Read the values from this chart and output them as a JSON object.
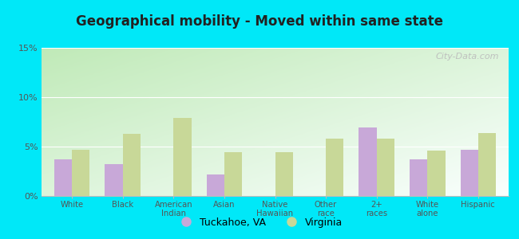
{
  "title": "Geographical mobility - Moved within same state",
  "categories": [
    "White",
    "Black",
    "American\nIndian",
    "Asian",
    "Native\nHawaiian",
    "Other\nrace",
    "2+\nraces",
    "White\nalone",
    "Hispanic"
  ],
  "tuckahoe_values": [
    3.7,
    3.2,
    0.0,
    2.2,
    0.0,
    0.0,
    6.9,
    3.7,
    4.7
  ],
  "virginia_values": [
    4.7,
    6.3,
    7.9,
    4.4,
    4.4,
    5.8,
    5.8,
    4.6,
    6.4
  ],
  "tuckahoe_color": "#c8a8d8",
  "virginia_color": "#c8d898",
  "background_outer": "#00e8f8",
  "grad_top_left": "#c8ecc0",
  "grad_bottom_right": "#f8fff8",
  "ylim": [
    0,
    15
  ],
  "yticks": [
    0,
    5,
    10,
    15
  ],
  "ytick_labels": [
    "0%",
    "5%",
    "10%",
    "15%"
  ],
  "legend_tuckahoe": "Tuckahoe, VA",
  "legend_virginia": "Virginia",
  "bar_width": 0.35,
  "watermark": "City-Data.com"
}
